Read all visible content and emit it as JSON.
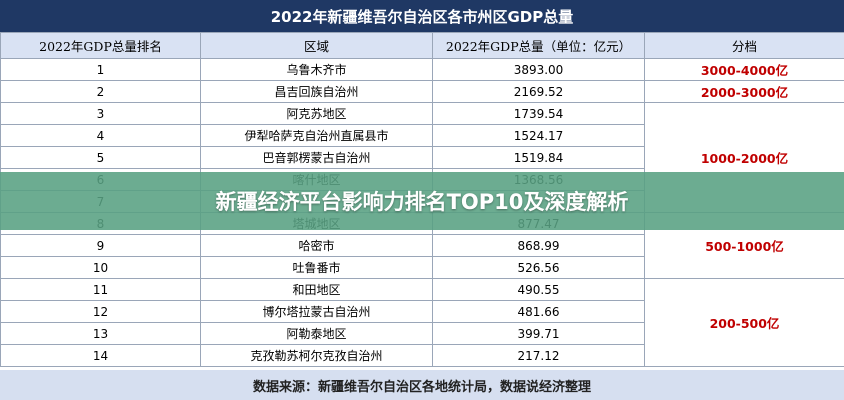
{
  "title": "2022年新疆维吾尔自治区各市州区GDP总量",
  "headers": {
    "rank": "2022年GDP总量排名",
    "region": "区域",
    "gdp": "2022年GDP总量（单位：亿元）",
    "tier": "分档"
  },
  "rows": [
    {
      "rank": "1",
      "region": "乌鲁木齐市",
      "gdp": "3893.00"
    },
    {
      "rank": "2",
      "region": "昌吉回族自治州",
      "gdp": "2169.52"
    },
    {
      "rank": "3",
      "region": "阿克苏地区",
      "gdp": "1739.54"
    },
    {
      "rank": "4",
      "region": "伊犁哈萨克自治州直属县市",
      "gdp": "1524.17"
    },
    {
      "rank": "5",
      "region": "巴音郭楞蒙古自治州",
      "gdp": "1519.84"
    },
    {
      "rank": "6",
      "region": "喀什地区",
      "gdp": "1368.56"
    },
    {
      "rank": "7",
      "region": "",
      "gdp": ""
    },
    {
      "rank": "8",
      "region": "塔城地区",
      "gdp": "877.47"
    },
    {
      "rank": "9",
      "region": "哈密市",
      "gdp": "868.99"
    },
    {
      "rank": "10",
      "region": "吐鲁番市",
      "gdp": "526.56"
    },
    {
      "rank": "11",
      "region": "和田地区",
      "gdp": "490.55"
    },
    {
      "rank": "12",
      "region": "博尔塔拉蒙古自治州",
      "gdp": "481.66"
    },
    {
      "rank": "13",
      "region": "阿勒泰地区",
      "gdp": "399.71"
    },
    {
      "rank": "14",
      "region": "克孜勒苏柯尔克孜自治州",
      "gdp": "217.12"
    }
  ],
  "tiers": [
    {
      "label": "3000-4000亿",
      "span": 1
    },
    {
      "label": "2000-3000亿",
      "span": 1
    },
    {
      "label": "1000-2000亿",
      "span": 5
    },
    {
      "label": "500-1000亿",
      "span": 3
    },
    {
      "label": "200-500亿",
      "span": 4
    }
  ],
  "overlay_text": "新疆经济平台影响力排名TOP10及深度解析",
  "footer": "数据来源：新疆维吾尔自治区各地统计局，数据说经济整理",
  "colors": {
    "title_bg": "#1f3864",
    "header_bg": "#d9e2f3",
    "tier_text": "#c00000",
    "overlay_bg": "#58a082",
    "footer_bg": "#d6dff0"
  }
}
